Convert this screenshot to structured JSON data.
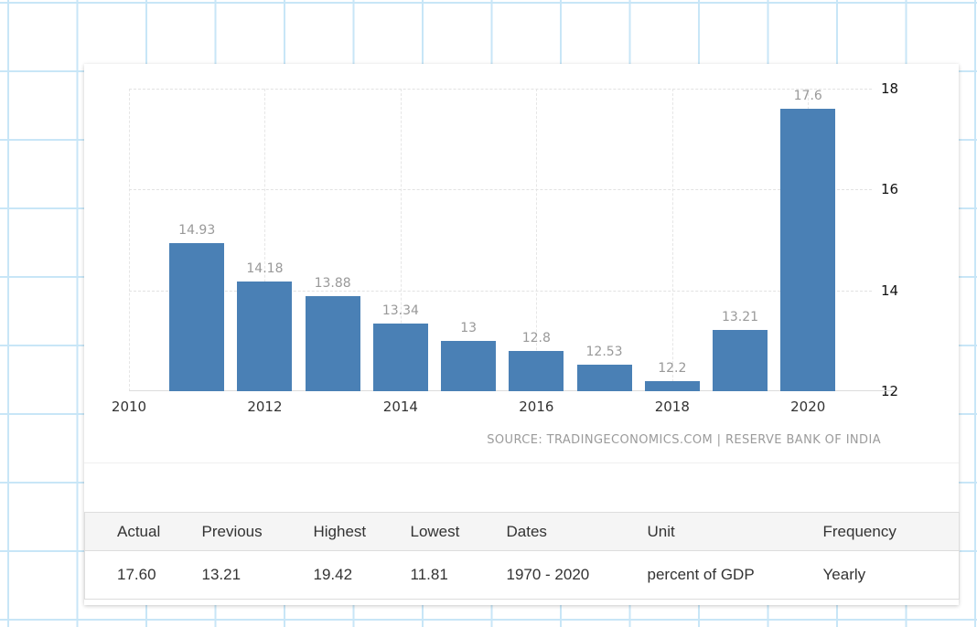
{
  "accent_colors": {
    "grid_paper_blue": "#c8e6f7",
    "bar_blue": "#4a80b5",
    "table_header_bg": "#f5f5f5"
  },
  "chart_data": {
    "type": "bar",
    "title": "",
    "x": [
      2011,
      2012,
      2013,
      2014,
      2015,
      2016,
      2017,
      2018,
      2019,
      2020
    ],
    "values": [
      14.93,
      14.18,
      13.88,
      13.34,
      13,
      12.8,
      12.53,
      12.2,
      13.21,
      17.6
    ],
    "bar_labels": [
      "14.93",
      "14.18",
      "13.88",
      "13.34",
      "13",
      "12.8",
      "12.53",
      "12.2",
      "13.21",
      "17.6"
    ],
    "x_ticks": [
      "2010",
      "2012",
      "2014",
      "2016",
      "2018",
      "2020"
    ],
    "y_ticks": [
      "12",
      "14",
      "16",
      "18"
    ],
    "xlim": [
      2010,
      2020.94
    ],
    "ylim": [
      12,
      18
    ],
    "xlabel": "",
    "ylabel": "",
    "grid": "dashed, light gray, horizontal and vertical at even years",
    "legend": "none",
    "bar_color": "#4a80b5",
    "label_color": "#999999",
    "source_note": "SOURCE: TRADINGECONOMICS.COM | RESERVE BANK OF INDIA"
  },
  "table": {
    "headers": [
      "Actual",
      "Previous",
      "Highest",
      "Lowest",
      "Dates",
      "Unit",
      "Frequency"
    ],
    "row": [
      "17.60",
      "13.21",
      "19.42",
      "11.81",
      "1970 - 2020",
      "percent of GDP",
      "Yearly"
    ]
  }
}
